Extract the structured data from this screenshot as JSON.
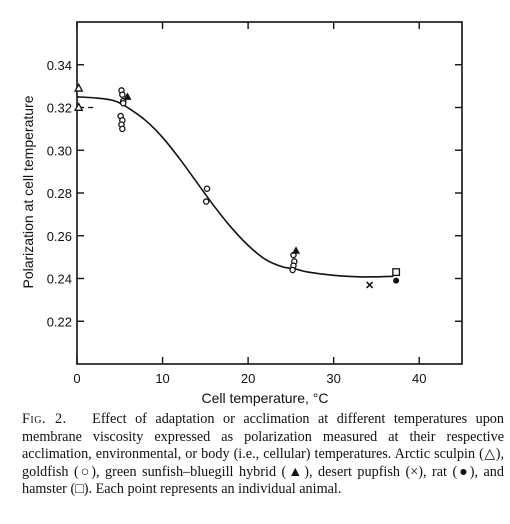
{
  "caption": {
    "label": "Fig. 2.",
    "text": "Effect of adaptation or acclimation at different temperatures upon membrane viscosity expressed as polarization measured at their respective acclimation, environmental, or body (i.e., cellular) temperatures. Arctic sculpin (△), goldfish (○), green sunfish–bluegill hybrid (▲), desert pupfish (×), rat (●), and hamster (□). Each point represents an individual animal."
  },
  "chart_data": {
    "type": "scatter",
    "xlabel": "Cell temperature, °C",
    "ylabel": "Polarization at cell temperature",
    "xlim": [
      0,
      45
    ],
    "ylim": [
      0.2,
      0.36
    ],
    "xticks": [
      0,
      10,
      20,
      30,
      40
    ],
    "yticks": [
      0.22,
      0.24,
      0.26,
      0.28,
      0.3,
      0.32,
      0.34
    ],
    "xtick_labels": [
      "0",
      "10",
      "20",
      "30",
      "40"
    ],
    "ytick_labels": [
      "0.22",
      "0.24",
      "0.26",
      "0.28",
      "0.30",
      "0.32",
      "0.34"
    ],
    "grid": false,
    "series": [
      {
        "name": "Arctic sculpin",
        "marker": "triangle-open",
        "x": [
          0.2,
          0.2
        ],
        "y": [
          0.329,
          0.32
        ]
      },
      {
        "name": "goldfish",
        "marker": "circle-open",
        "x": [
          5.2,
          5.3,
          5.4,
          5.1,
          5.3,
          5.2,
          5.3,
          5.4,
          15.2,
          15.1,
          25.3,
          25.4,
          25.3,
          25.2
        ],
        "y": [
          0.328,
          0.326,
          0.323,
          0.316,
          0.314,
          0.312,
          0.31,
          0.322,
          0.282,
          0.276,
          0.251,
          0.248,
          0.246,
          0.244
        ]
      },
      {
        "name": "green sunfish–bluegill hybrid",
        "marker": "triangle-filled",
        "x": [
          5.9,
          25.6
        ],
        "y": [
          0.325,
          0.253
        ]
      },
      {
        "name": "desert pupfish",
        "marker": "cross",
        "x": [
          34.2
        ],
        "y": [
          0.237
        ]
      },
      {
        "name": "rat",
        "marker": "circle-filled",
        "x": [
          37.3
        ],
        "y": [
          0.239
        ]
      },
      {
        "name": "hamster",
        "marker": "square-open",
        "x": [
          37.3
        ],
        "y": [
          0.243
        ]
      }
    ],
    "fit_curve": {
      "x": [
        0,
        2,
        4,
        5.5,
        8,
        10,
        12,
        14,
        16,
        18,
        20,
        22,
        24,
        25.5,
        27,
        30,
        33,
        35,
        37
      ],
      "y": [
        0.325,
        0.3245,
        0.3235,
        0.321,
        0.314,
        0.306,
        0.296,
        0.285,
        0.274,
        0.264,
        0.2555,
        0.249,
        0.2455,
        0.2445,
        0.243,
        0.2415,
        0.2408,
        0.2408,
        0.241
      ]
    }
  }
}
